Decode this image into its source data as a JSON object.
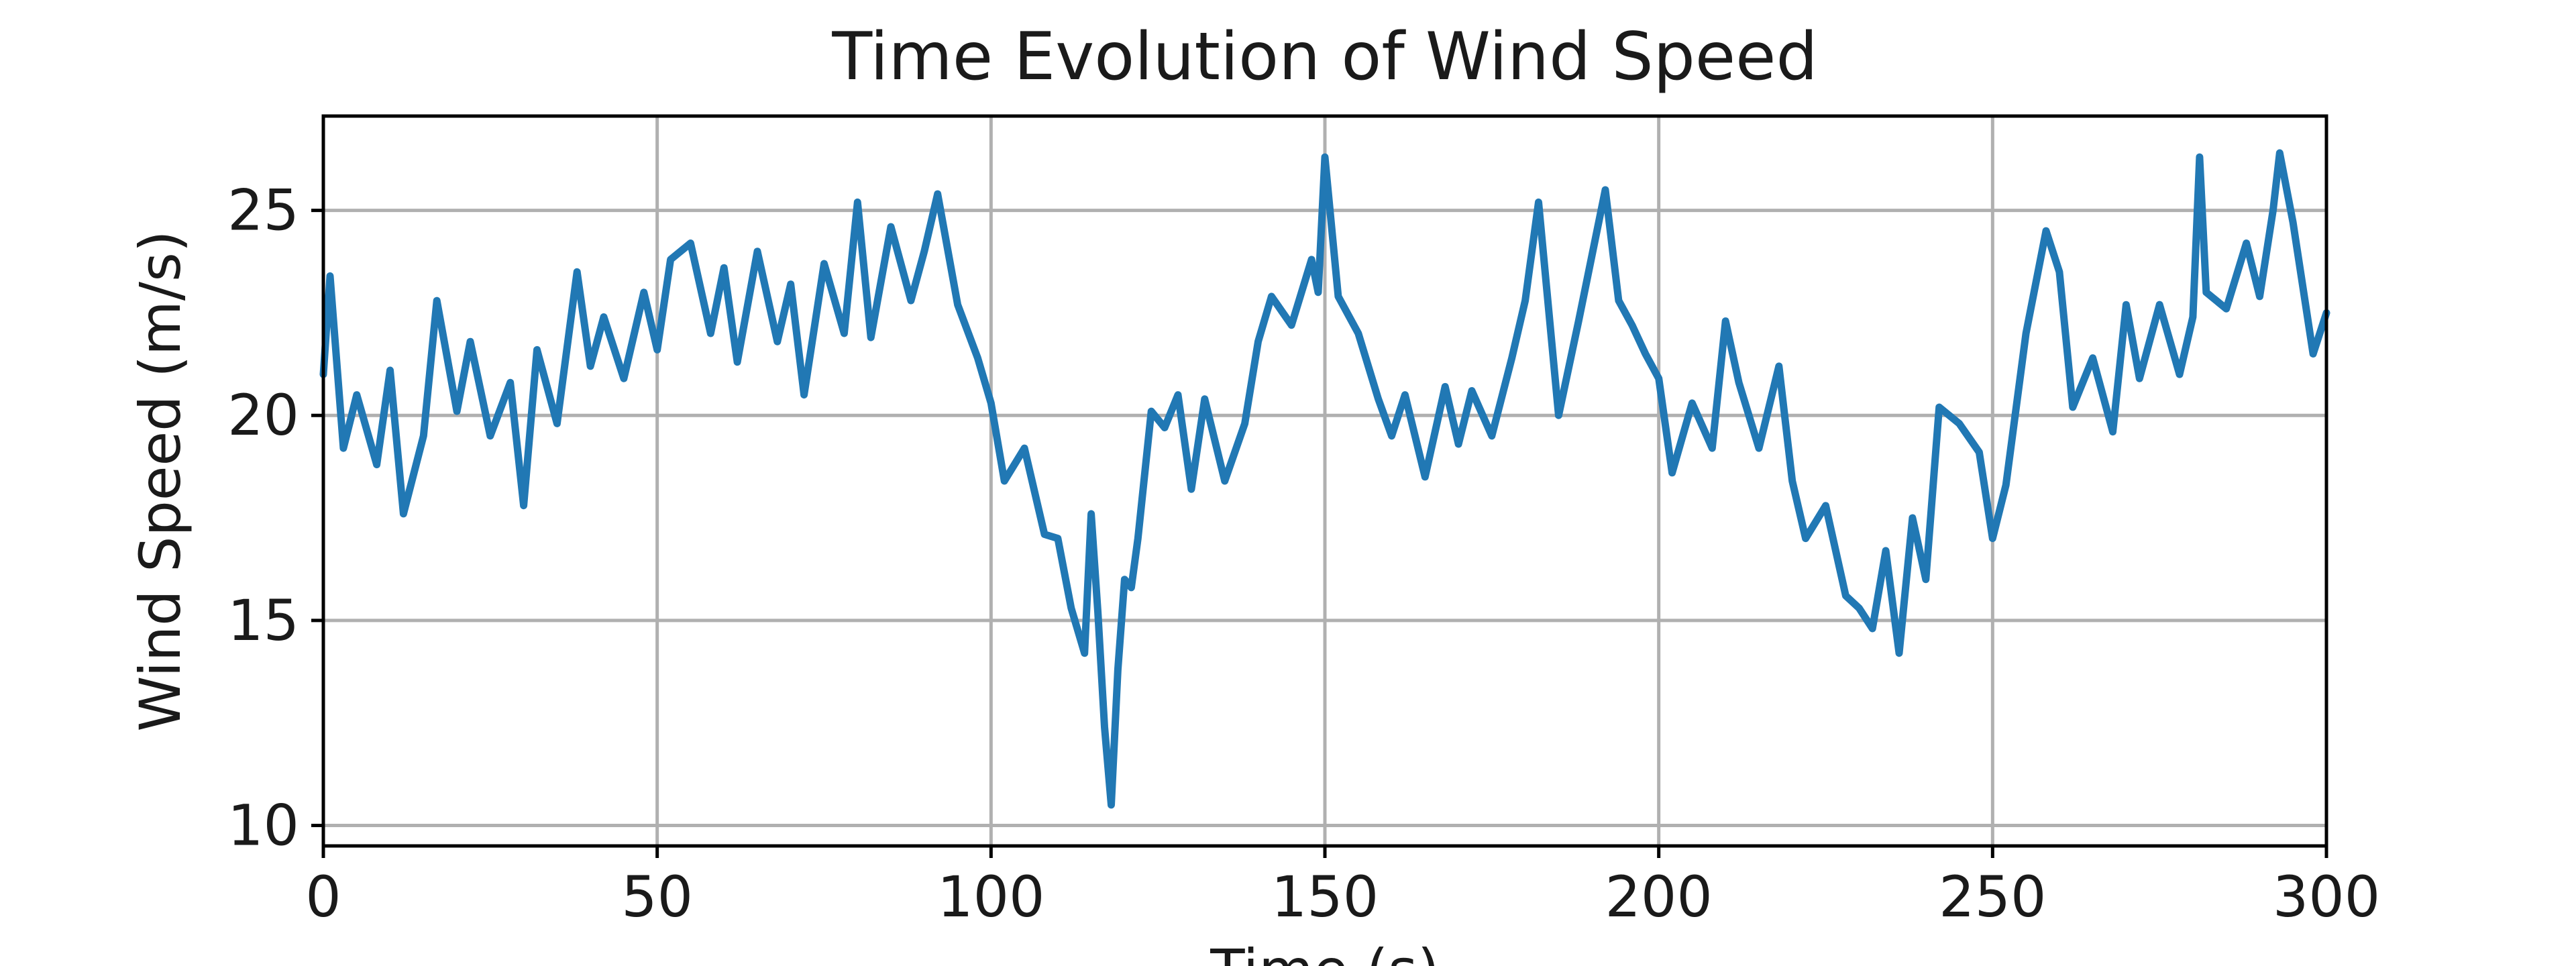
{
  "chart_data": {
    "type": "line",
    "title": "Time Evolution of Wind Speed",
    "xlabel": "Time (s)",
    "ylabel": "Wind Speed (m/s)",
    "xlim": [
      0,
      300
    ],
    "ylim": [
      9.5,
      27.3
    ],
    "xticks": [
      0,
      50,
      100,
      150,
      200,
      250,
      300
    ],
    "yticks": [
      10,
      15,
      20,
      25
    ],
    "grid": true,
    "series": [
      {
        "color": "#2178b4",
        "x": [
          0,
          1,
          3,
          5,
          8,
          10,
          12,
          15,
          17,
          20,
          22,
          25,
          28,
          30,
          32,
          35,
          38,
          40,
          42,
          45,
          48,
          50,
          52,
          55,
          58,
          60,
          62,
          65,
          68,
          70,
          72,
          75,
          78,
          80,
          82,
          85,
          88,
          90,
          92,
          95,
          98,
          100,
          102,
          105,
          108,
          110,
          112,
          114,
          115,
          116,
          117,
          118,
          119,
          120,
          121,
          122,
          124,
          126,
          128,
          130,
          132,
          135,
          138,
          140,
          142,
          145,
          148,
          149,
          150,
          152,
          155,
          158,
          160,
          162,
          165,
          168,
          170,
          172,
          175,
          178,
          180,
          182,
          185,
          188,
          190,
          192,
          194,
          196,
          198,
          200,
          202,
          205,
          208,
          210,
          212,
          215,
          218,
          220,
          222,
          225,
          228,
          230,
          232,
          234,
          236,
          238,
          240,
          242,
          245,
          248,
          250,
          252,
          255,
          258,
          260,
          262,
          265,
          268,
          270,
          272,
          275,
          278,
          280,
          281,
          282,
          285,
          288,
          290,
          292,
          293,
          295,
          298,
          300
        ],
        "y": [
          21.0,
          23.4,
          19.2,
          20.5,
          18.8,
          21.1,
          17.6,
          19.5,
          22.8,
          20.1,
          21.8,
          19.5,
          20.8,
          17.8,
          21.6,
          19.8,
          23.5,
          21.2,
          22.4,
          20.9,
          23.0,
          21.6,
          23.8,
          24.2,
          22.0,
          23.6,
          21.3,
          24.0,
          21.8,
          23.2,
          20.5,
          23.7,
          22.0,
          25.2,
          21.9,
          24.6,
          22.8,
          24.0,
          25.4,
          22.7,
          21.4,
          20.3,
          18.4,
          19.2,
          17.1,
          17.0,
          15.3,
          14.2,
          17.6,
          15.2,
          12.4,
          10.5,
          13.8,
          16.0,
          15.8,
          17.0,
          20.1,
          19.7,
          20.5,
          18.2,
          20.4,
          18.4,
          19.8,
          21.8,
          22.9,
          22.2,
          23.8,
          23.0,
          26.3,
          22.9,
          22.0,
          20.4,
          19.5,
          20.5,
          18.5,
          20.7,
          19.3,
          20.6,
          19.5,
          21.4,
          22.8,
          25.2,
          20.0,
          22.3,
          23.9,
          25.5,
          22.8,
          22.2,
          21.5,
          20.9,
          18.6,
          20.3,
          19.2,
          22.3,
          20.8,
          19.2,
          21.2,
          18.4,
          17.0,
          17.8,
          15.6,
          15.3,
          14.8,
          16.7,
          14.2,
          17.5,
          16.0,
          20.2,
          19.8,
          19.1,
          17.0,
          18.3,
          22.0,
          24.5,
          23.5,
          20.2,
          21.4,
          19.6,
          22.7,
          20.9,
          22.7,
          21.0,
          22.4,
          26.3,
          23.0,
          22.6,
          24.2,
          22.9,
          25.0,
          26.4,
          24.7,
          21.5,
          22.5
        ]
      }
    ]
  }
}
